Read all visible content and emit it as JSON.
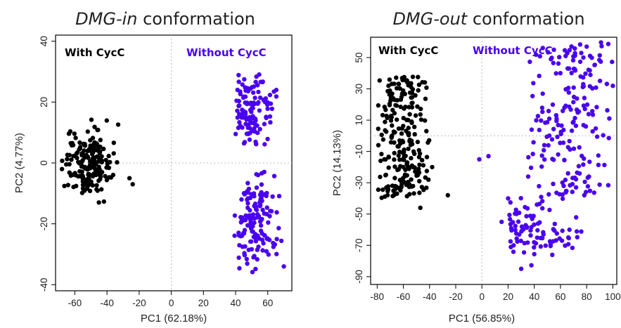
{
  "chart_data": [
    {
      "type": "scatter",
      "title_italic": "DMG-in",
      "title_rest": " conformation",
      "xlabel": "PC1 (62.18%)",
      "ylabel": "PC2 (4.77%)",
      "xlim": [
        -72,
        75
      ],
      "ylim": [
        -42,
        42
      ],
      "xticks": [
        -60,
        -40,
        -20,
        0,
        20,
        40,
        60
      ],
      "yticks": [
        -40,
        -20,
        0,
        20,
        40
      ],
      "grid": "dotted zero lines",
      "series": [
        {
          "name": "With CycC",
          "color": "#000000",
          "generator": "gauss",
          "cx": -52,
          "cy": 0,
          "sx": 7,
          "sy": 5.2,
          "n": 190,
          "xmin": -68,
          "xmax": -24,
          "ymin": -14,
          "ymax": 15,
          "extra": [
            [
              -24,
              -7
            ],
            [
              -26,
              -5
            ],
            [
              -68,
              -2
            ]
          ]
        },
        {
          "name": "Without CycC",
          "color": "#4a00f0",
          "generator": "gauss",
          "cx": 50,
          "cy": 17,
          "sx": 7,
          "sy": 6.5,
          "n": 120,
          "xmin": 37,
          "xmax": 66,
          "ymin": 5,
          "ymax": 33,
          "extra": []
        },
        {
          "name": "",
          "color": "#4a00f0",
          "generator": "gauss",
          "cx": 52,
          "cy": -19,
          "sx": 7,
          "sy": 8,
          "n": 140,
          "xmin": 38,
          "xmax": 70,
          "ymin": -37,
          "ymax": -2,
          "extra": [
            [
              70,
              -34
            ]
          ]
        }
      ],
      "legend": [
        "With CycC",
        "Without CycC"
      ]
    },
    {
      "type": "scatter",
      "title_italic": "DMG-out",
      "title_rest": " conformation",
      "xlabel": "PC1 (56.85%)",
      "ylabel": "PC2 (14.13%)",
      "xlim": [
        -85,
        103
      ],
      "ylim": [
        -95,
        63
      ],
      "xticks": [
        -80,
        -60,
        -40,
        -20,
        0,
        20,
        40,
        60,
        80,
        100
      ],
      "yticks": [
        -90,
        -70,
        -50,
        -30,
        -10,
        10,
        30,
        50
      ],
      "grid": "dotted zero lines",
      "series": [
        {
          "name": "With CycC",
          "color": "#000000",
          "generator": "uniform",
          "cx": -62,
          "cy": -2,
          "sx": 9,
          "sy": 20,
          "n": 230,
          "xmin": -80,
          "xmax": -40,
          "ymin": -40,
          "ymax": 38,
          "extra": [
            [
              -26,
              -38
            ],
            [
              -47,
              -46
            ],
            [
              -38,
              -20
            ]
          ]
        },
        {
          "name": "Without CycC",
          "color": "#4a00f0",
          "generator": "uniform",
          "cx": 68,
          "cy": 5,
          "sx": 15,
          "sy": 28,
          "n": 190,
          "xmin": 35,
          "xmax": 100,
          "ymin": -40,
          "ymax": 60,
          "extra": [
            [
              15,
              -55
            ],
            [
              20,
              -40
            ],
            [
              -2,
              -15
            ],
            [
              5,
              -13
            ],
            [
              55,
              55
            ],
            [
              80,
              57
            ]
          ]
        },
        {
          "name": "",
          "color": "#4a00f0",
          "generator": "gauss",
          "cx": 35,
          "cy": -60,
          "sx": 18,
          "sy": 9,
          "n": 90,
          "xmin": 20,
          "xmax": 85,
          "ymin": -85,
          "ymax": -35,
          "extra": [
            [
              30,
              -85
            ]
          ]
        }
      ],
      "legend": [
        "With CycC",
        "Without CycC"
      ]
    }
  ]
}
